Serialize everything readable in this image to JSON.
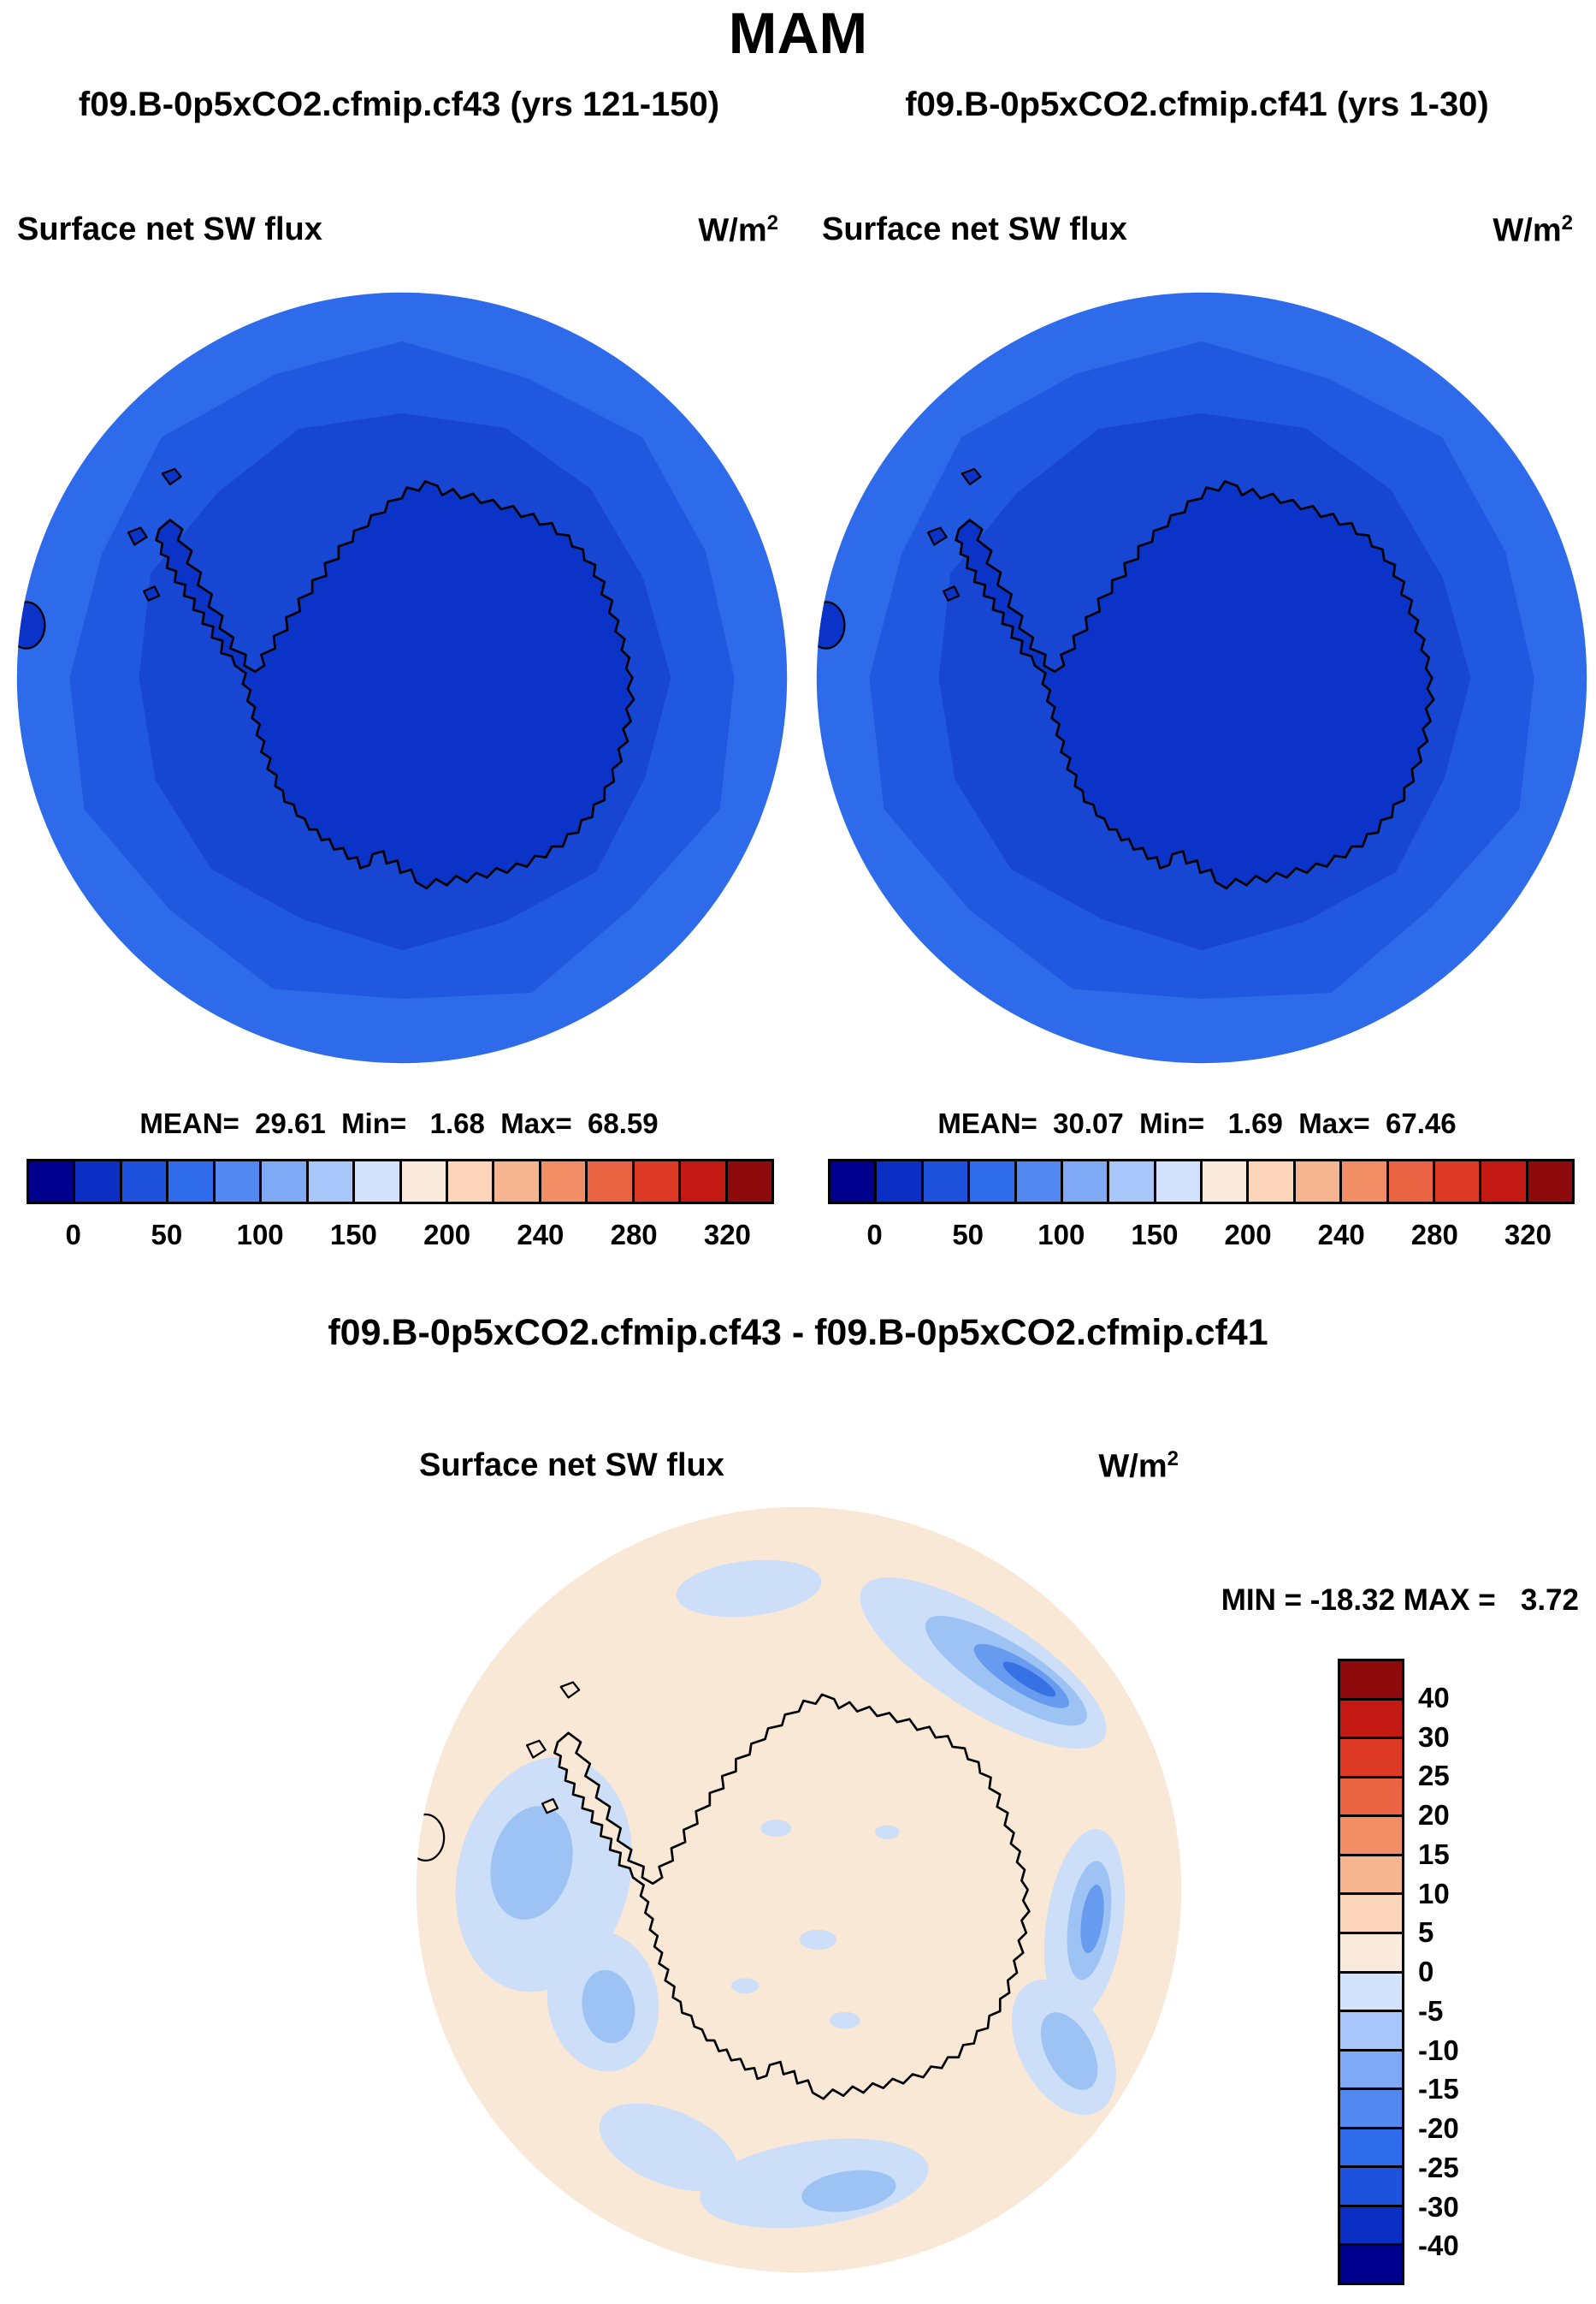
{
  "title": "MAM",
  "panels": {
    "left": {
      "case_label": "f09.B-0p5xCO2.cfmip.cf43 (yrs 121-150)",
      "field_label": "Surface net SW flux",
      "units_base": "W/m",
      "units_exp": "2",
      "stats": "MEAN=  29.61  Min=   1.68  Max=  68.59"
    },
    "right": {
      "case_label": "f09.B-0p5xCO2.cfmip.cf41 (yrs 1-30)",
      "field_label": "Surface net SW flux",
      "units_base": "W/m",
      "units_exp": "2",
      "stats": "MEAN=  30.07  Min=   1.69  Max=  67.46"
    },
    "diff": {
      "title": "f09.B-0p5xCO2.cfmip.cf43 - f09.B-0p5xCO2.cfmip.cf41",
      "field_label": "Surface net SW flux",
      "units_base": "W/m",
      "units_exp": "2",
      "stats": "MIN = -18.32 MAX =   3.72"
    }
  },
  "colorbar_top": {
    "orientation": "horizontal",
    "n_cells": 16,
    "colors": [
      "#00008F",
      "#0B2FC5",
      "#1E51DC",
      "#2E6BEB",
      "#5388F0",
      "#7FA8F5",
      "#A8C6F9",
      "#D2E2FC",
      "#FAEADB",
      "#FAD5BA",
      "#F6B491",
      "#F18E66",
      "#EA6444",
      "#DC3A25",
      "#C21A12",
      "#8F0A0D"
    ],
    "tick_labels": [
      "0",
      "50",
      "100",
      "150",
      "200",
      "240",
      "280",
      "320"
    ],
    "tick_positions": [
      1,
      3,
      5,
      7,
      9,
      11,
      13,
      15
    ]
  },
  "colorbar_diff": {
    "orientation": "vertical",
    "n_cells": 16,
    "colors": [
      "#8F0A0D",
      "#C21A12",
      "#DC3A25",
      "#EA6444",
      "#F18E66",
      "#F6B491",
      "#FAD5BA",
      "#FAEADB",
      "#D2E2FC",
      "#A8C6F9",
      "#7FA8F5",
      "#5388F0",
      "#2E6BEB",
      "#1E51DC",
      "#0B2FC5",
      "#00008F"
    ],
    "tick_labels": [
      "40",
      "30",
      "25",
      "20",
      "15",
      "10",
      "5",
      "0",
      "-5",
      "-10",
      "-15",
      "-20",
      "-25",
      "-30",
      "-40"
    ],
    "tick_positions": [
      1,
      2,
      3,
      4,
      5,
      6,
      7,
      8,
      9,
      10,
      11,
      12,
      13,
      14,
      15
    ]
  },
  "map_colors": {
    "ocean_outer": "#2E6BEB",
    "ocean_mid": "#2158E0",
    "ocean_inner": "#1646D2",
    "continent_fill": "#0C33C7",
    "coastline": "#000000",
    "diff_background": "#FAE8D6",
    "diff_light": "#CCDEF8",
    "diff_medium": "#9DC3F4",
    "diff_deep": "#679BEF",
    "diff_core": "#3672E3"
  },
  "chart_data": [
    {
      "type": "heatmap",
      "panel": "top-left",
      "title": "Surface net SW flux",
      "case": "f09.B-0p5xCO2.cfmip.cf43",
      "years": "yrs 121-150",
      "season": "MAM",
      "units": "W/m^2",
      "projection": "south-polar stereographic map of Antarctica",
      "mean": 29.61,
      "min": 1.68,
      "max": 68.59,
      "contour_levels": [
        0,
        25,
        50,
        75,
        100,
        125,
        150,
        175,
        200,
        220,
        240,
        260,
        280,
        300,
        320
      ],
      "labeled_levels": [
        0,
        50,
        100,
        150,
        200,
        240,
        280,
        320
      ],
      "description": "Low flux (dark blue, ~0-50 W/m^2) over the Antarctic continent, brighter blue (~50-100 W/m^2) over the surrounding Southern Ocean"
    },
    {
      "type": "heatmap",
      "panel": "top-right",
      "title": "Surface net SW flux",
      "case": "f09.B-0p5xCO2.cfmip.cf41",
      "years": "yrs 1-30",
      "season": "MAM",
      "units": "W/m^2",
      "projection": "south-polar stereographic map of Antarctica",
      "mean": 30.07,
      "min": 1.69,
      "max": 67.46,
      "contour_levels": [
        0,
        25,
        50,
        75,
        100,
        125,
        150,
        175,
        200,
        220,
        240,
        260,
        280,
        300,
        320
      ],
      "labeled_levels": [
        0,
        50,
        100,
        150,
        200,
        240,
        280,
        320
      ],
      "description": "Nearly identical pattern to top-left panel: dark blue continent, brighter blue ocean ring"
    },
    {
      "type": "heatmap",
      "panel": "bottom-difference",
      "title": "Surface net SW flux",
      "case": "f09.B-0p5xCO2.cfmip.cf43 - f09.B-0p5xCO2.cfmip.cf41",
      "season": "MAM",
      "units": "W/m^2",
      "projection": "south-polar stereographic map of Antarctica",
      "min": -18.32,
      "max": 3.72,
      "contour_levels": [
        -40,
        -30,
        -25,
        -20,
        -15,
        -10,
        -5,
        0,
        5,
        10,
        15,
        20,
        25,
        30,
        40
      ],
      "description": "Mostly near-zero (cream, 0 to 5); negative anomalies (light-to-medium blue, -5 to about -20) in ocean bands hugging the coast, strongest off the northeast coast"
    }
  ]
}
